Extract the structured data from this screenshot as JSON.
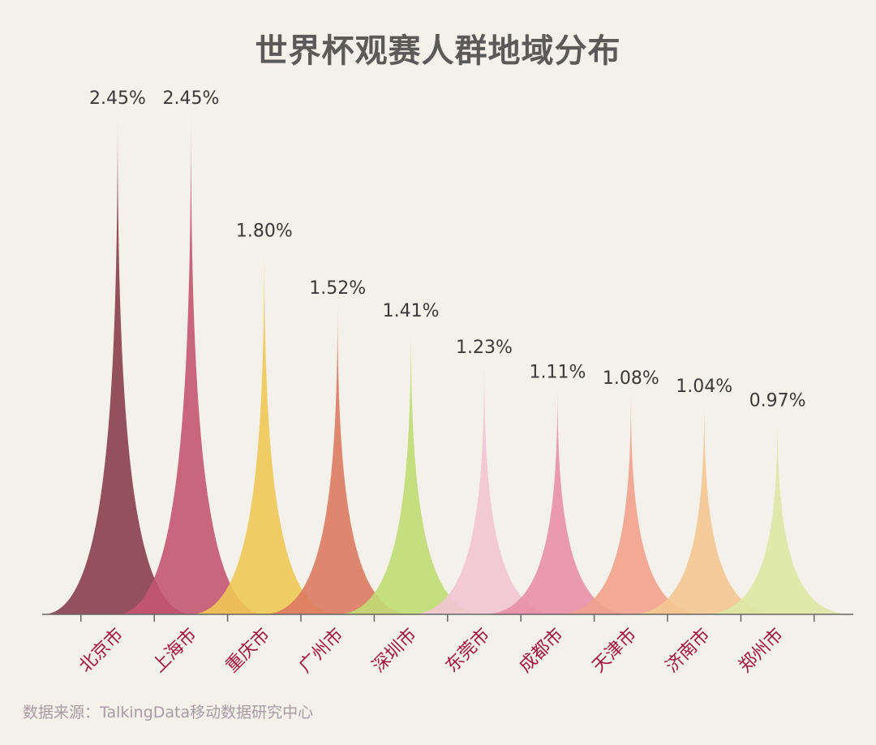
{
  "title": "世界杯观赛人群地域分布",
  "source": "数据来源：TalkingData移动数据研究中心",
  "colors": {
    "background": "#f4f0ea",
    "title": "#5a5a58",
    "category_label": "#a0183c",
    "value_label": "#3a3a3a",
    "axis": "#666666",
    "source": "#a99aa6"
  },
  "chart_data": {
    "type": "area",
    "shape": "spike",
    "categories": [
      "北京市",
      "上海市",
      "重庆市",
      "广州市",
      "深圳市",
      "东莞市",
      "成都市",
      "天津市",
      "济南市",
      "郑州市"
    ],
    "values": [
      2.45,
      2.45,
      1.8,
      1.52,
      1.41,
      1.23,
      1.11,
      1.08,
      1.04,
      0.97
    ],
    "value_labels": [
      "2.45%",
      "2.45%",
      "1.80%",
      "1.52%",
      "1.41%",
      "1.23%",
      "1.11%",
      "1.08%",
      "1.04%",
      "0.97%"
    ],
    "series_colors": [
      "#8a3f4b",
      "#c45570",
      "#f0c858",
      "#dc7a60",
      "#c0dc74",
      "#f2c4d2",
      "#e890a8",
      "#f2a28e",
      "#f4c690",
      "#dde8a4"
    ],
    "ylim": [
      0,
      2.45
    ],
    "grid": false,
    "legend": "none"
  }
}
